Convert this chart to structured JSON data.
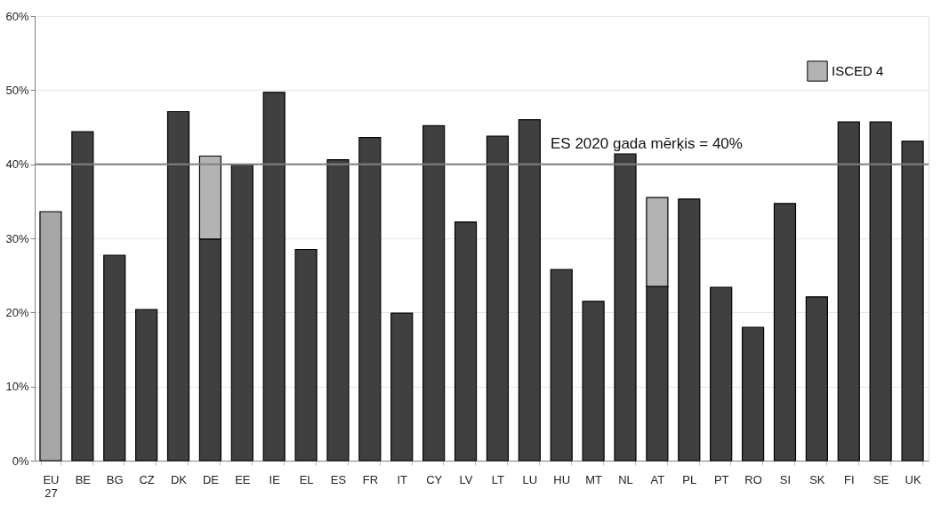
{
  "chart_data": {
    "type": "bar",
    "stacked": true,
    "categories": [
      "EU 27",
      "BE",
      "BG",
      "CZ",
      "DK",
      "DE",
      "EE",
      "IE",
      "EL",
      "ES",
      "FR",
      "IT",
      "CY",
      "LV",
      "LT",
      "LU",
      "HU",
      "MT",
      "NL",
      "AT",
      "PL",
      "PT",
      "RO",
      "SI",
      "SK",
      "FI",
      "SE",
      "UK"
    ],
    "series": [
      {
        "colors": [
          "#a6a6a6",
          "#404040",
          "#404040",
          "#404040",
          "#404040",
          "#404040",
          "#404040",
          "#404040",
          "#404040",
          "#404040",
          "#404040",
          "#404040",
          "#404040",
          "#404040",
          "#404040",
          "#404040",
          "#404040",
          "#404040",
          "#404040",
          "#404040",
          "#404040",
          "#404040",
          "#404040",
          "#404040",
          "#404040",
          "#404040",
          "#404040",
          "#404040"
        ],
        "values": [
          33.6,
          44.4,
          27.7,
          20.4,
          47.1,
          29.9,
          40.0,
          49.7,
          28.5,
          40.6,
          43.6,
          19.9,
          45.2,
          32.2,
          43.8,
          46.0,
          25.8,
          21.5,
          41.4,
          23.5,
          35.3,
          23.4,
          18.0,
          34.7,
          22.1,
          45.7,
          45.7,
          43.1
        ]
      },
      {
        "name": "ISCED 4",
        "color": "#b3b3b3",
        "values": [
          null,
          null,
          null,
          null,
          null,
          11.2,
          null,
          null,
          null,
          null,
          null,
          null,
          null,
          null,
          null,
          null,
          null,
          null,
          null,
          12.0,
          null,
          null,
          null,
          null,
          null,
          null,
          null,
          null
        ]
      }
    ],
    "ylim": [
      0,
      60
    ],
    "yticks": [
      {
        "value": 0,
        "label": "0%"
      },
      {
        "value": 10,
        "label": "10%"
      },
      {
        "value": 20,
        "label": "20%"
      },
      {
        "value": 30,
        "label": "30%"
      },
      {
        "value": 40,
        "label": "40%"
      },
      {
        "value": 50,
        "label": "50%"
      },
      {
        "value": 60,
        "label": "60%"
      }
    ],
    "ref_lines": [
      {
        "axis": "y",
        "value": 40,
        "label": "ES 2020 gada mērķis = 40%",
        "color": "#808080"
      }
    ],
    "grid": "y",
    "legend": "top right"
  }
}
